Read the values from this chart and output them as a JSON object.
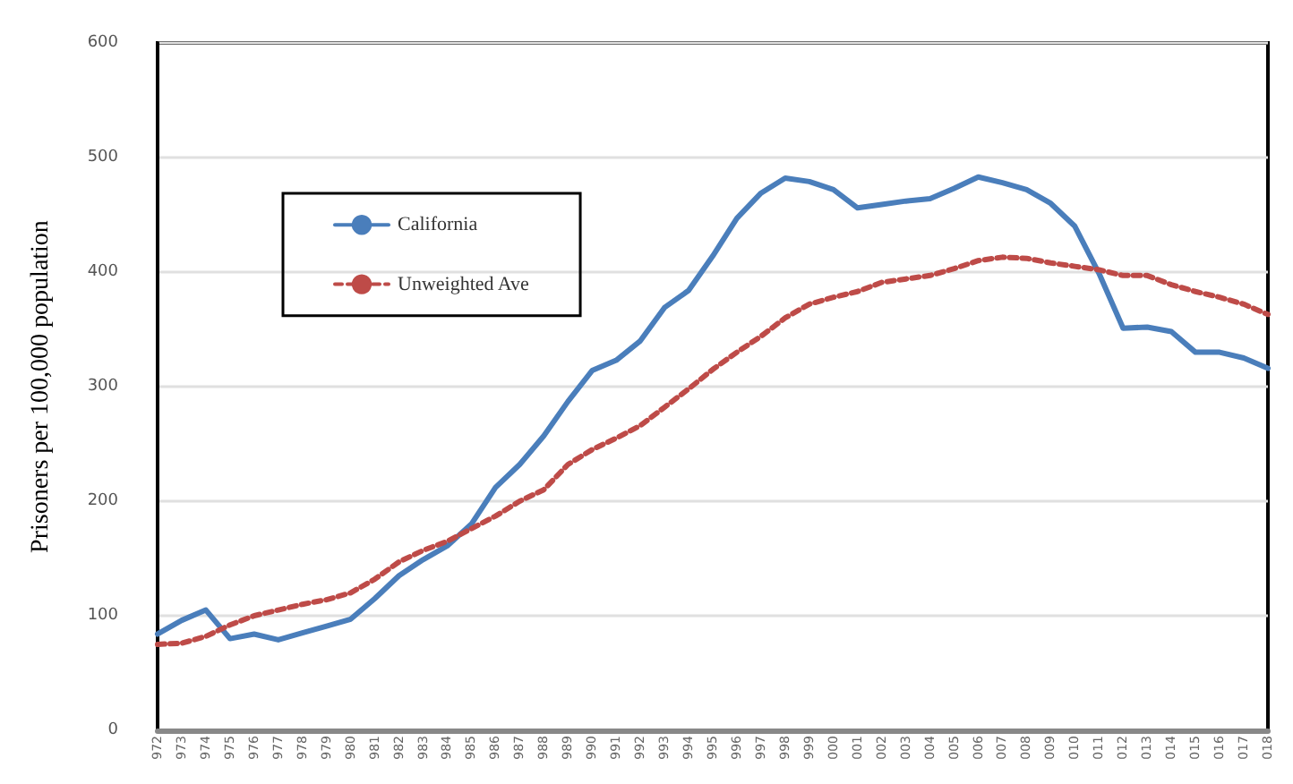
{
  "chart_data": {
    "type": "line",
    "ylabel": "Prisoners per 100,000 population",
    "categories": [
      "972",
      "973",
      "974",
      "975",
      "976",
      "977",
      "978",
      "979",
      "980",
      "981",
      "982",
      "983",
      "984",
      "985",
      "986",
      "987",
      "988",
      "989",
      "990",
      "991",
      "992",
      "993",
      "994",
      "995",
      "996",
      "997",
      "998",
      "999",
      "000",
      "001",
      "002",
      "003",
      "004",
      "005",
      "006",
      "007",
      "008",
      "009",
      "010",
      "011",
      "012",
      "013",
      "014",
      "015",
      "016",
      "017",
      "018"
    ],
    "series": [
      {
        "name": "California",
        "color": "#4a7ebb",
        "line_style": "solid",
        "values": [
          84,
          96,
          105,
          80,
          84,
          79,
          85,
          91,
          97,
          115,
          135,
          149,
          161,
          180,
          212,
          232,
          257,
          287,
          314,
          323,
          340,
          369,
          384,
          414,
          447,
          469,
          482,
          479,
          472,
          456,
          459,
          462,
          464,
          473,
          483,
          478,
          472,
          460,
          440,
          399,
          351,
          352,
          348,
          330,
          330,
          325,
          316
        ]
      },
      {
        "name": "Unweighted Ave",
        "color": "#be4b48",
        "line_style": "dashed",
        "values": [
          75,
          76,
          82,
          92,
          100,
          105,
          110,
          114,
          120,
          132,
          147,
          157,
          165,
          176,
          187,
          200,
          210,
          232,
          245,
          255,
          266,
          282,
          298,
          315,
          330,
          344,
          360,
          372,
          378,
          383,
          391,
          394,
          397,
          403,
          410,
          413,
          412,
          408,
          405,
          402,
          397,
          397,
          389,
          383,
          378,
          372,
          363
        ]
      }
    ],
    "ylim": [
      0,
      600
    ],
    "yticks": [
      0,
      100,
      200,
      300,
      400,
      500,
      600
    ],
    "grid": "y",
    "legend": "top left",
    "marker": "none"
  }
}
